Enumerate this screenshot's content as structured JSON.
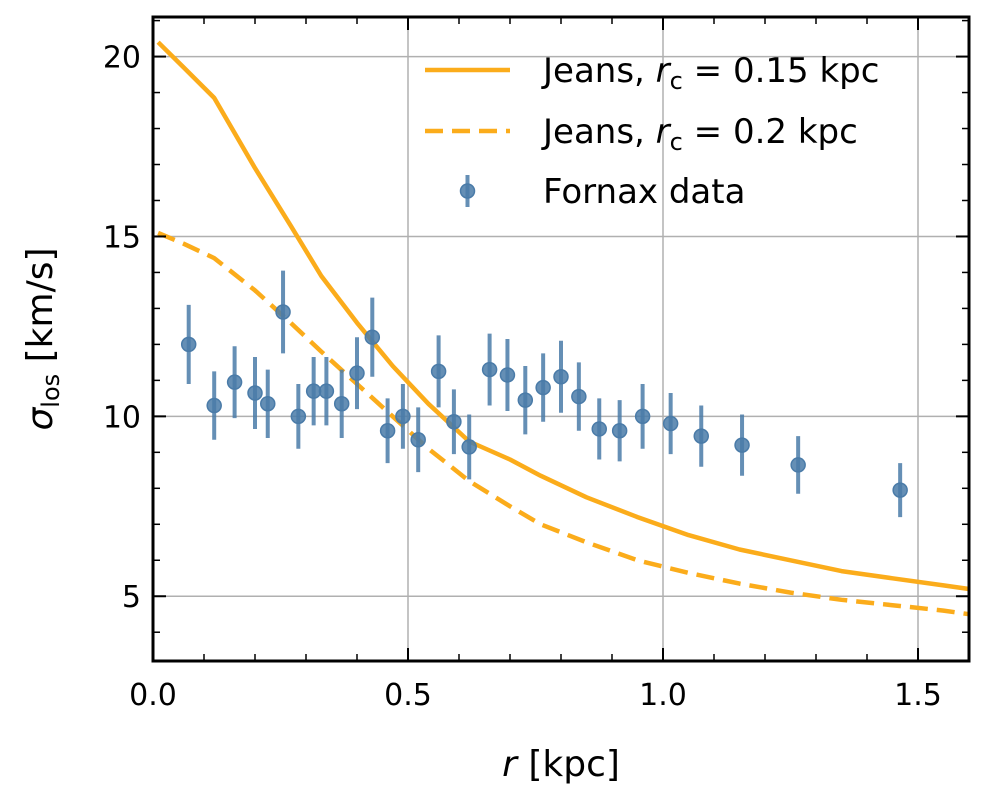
{
  "chart_data": {
    "type": "line",
    "xlabel": {
      "var": "r",
      "unit": "[kpc]"
    },
    "ylabel": {
      "var": "σ",
      "sub": "los",
      "unit": "[km/s]"
    },
    "xlim": [
      0.0,
      1.6
    ],
    "ylim": [
      3.2,
      21.1
    ],
    "xticks": [
      0.0,
      0.5,
      1.0,
      1.5
    ],
    "xtick_labels": [
      "0.0",
      "0.5",
      "1.0",
      "1.5"
    ],
    "yticks": [
      5,
      10,
      15,
      20
    ],
    "ytick_labels": [
      "5",
      "10",
      "15",
      "20"
    ],
    "grid": true,
    "legend_position": "top-right",
    "series": [
      {
        "name": "Jeans, r_c = 0.15 kpc",
        "legend": {
          "pre": "Jeans, ",
          "var": "r",
          "sub": "c",
          "post": " = 0.15 kpc"
        },
        "style": "solid",
        "color": "#fbac1b",
        "x": [
          0.01,
          0.06,
          0.12,
          0.2,
          0.27,
          0.33,
          0.4,
          0.47,
          0.54,
          0.62,
          0.7,
          0.76,
          0.85,
          0.95,
          1.05,
          1.15,
          1.25,
          1.35,
          1.45,
          1.55,
          1.6
        ],
        "y": [
          20.4,
          19.7,
          18.85,
          16.9,
          15.3,
          13.9,
          12.6,
          11.4,
          10.35,
          9.3,
          8.8,
          8.35,
          7.75,
          7.2,
          6.7,
          6.3,
          6.0,
          5.7,
          5.5,
          5.3,
          5.2
        ]
      },
      {
        "name": "Jeans, r_c = 0.2 kpc",
        "legend": {
          "pre": "Jeans, ",
          "var": "r",
          "sub": "c",
          "post": " = 0.2 kpc"
        },
        "style": "dashed",
        "color": "#fbac1b",
        "x": [
          0.01,
          0.06,
          0.12,
          0.2,
          0.27,
          0.33,
          0.4,
          0.47,
          0.54,
          0.62,
          0.7,
          0.76,
          0.85,
          0.95,
          1.05,
          1.15,
          1.25,
          1.35,
          1.45,
          1.55,
          1.6
        ],
        "y": [
          15.1,
          14.8,
          14.4,
          13.5,
          12.6,
          11.8,
          10.9,
          10.0,
          9.1,
          8.2,
          7.5,
          7.0,
          6.5,
          6.0,
          5.65,
          5.35,
          5.1,
          4.9,
          4.75,
          4.6,
          4.5
        ]
      },
      {
        "name": "Fornax data",
        "legend": {
          "pre": "Fornax data"
        },
        "style": "errorbar",
        "color": "#4a7ba8",
        "x": [
          0.07,
          0.12,
          0.16,
          0.2,
          0.225,
          0.255,
          0.285,
          0.315,
          0.34,
          0.37,
          0.4,
          0.43,
          0.46,
          0.49,
          0.52,
          0.56,
          0.59,
          0.62,
          0.66,
          0.695,
          0.73,
          0.765,
          0.8,
          0.835,
          0.875,
          0.915,
          0.96,
          1.015,
          1.075,
          1.155,
          1.265,
          1.465
        ],
        "y": [
          12.0,
          10.3,
          10.95,
          10.65,
          10.35,
          12.9,
          10.0,
          10.7,
          10.7,
          10.35,
          11.2,
          12.2,
          9.6,
          10.0,
          9.35,
          11.25,
          9.85,
          9.15,
          11.3,
          11.15,
          10.45,
          10.8,
          11.1,
          10.55,
          9.65,
          9.6,
          10.0,
          9.8,
          9.45,
          9.2,
          8.65,
          7.95
        ],
        "yerr": [
          1.1,
          0.95,
          1.0,
          1.0,
          0.95,
          1.15,
          0.9,
          0.95,
          0.95,
          0.95,
          1.0,
          1.1,
          0.9,
          0.9,
          0.9,
          1.0,
          0.9,
          0.9,
          1.0,
          1.0,
          0.95,
          0.95,
          1.0,
          0.95,
          0.85,
          0.85,
          0.9,
          0.85,
          0.85,
          0.85,
          0.8,
          0.75
        ]
      }
    ]
  }
}
